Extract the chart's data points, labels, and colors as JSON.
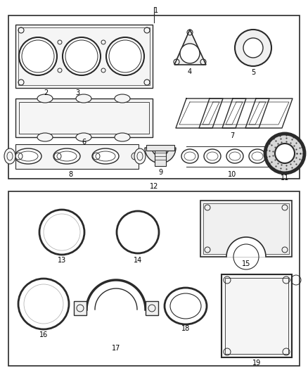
{
  "bg_color": "#ffffff",
  "line_color": "#2a2a2a",
  "fig_w": 4.38,
  "fig_h": 5.33,
  "dpi": 100
}
